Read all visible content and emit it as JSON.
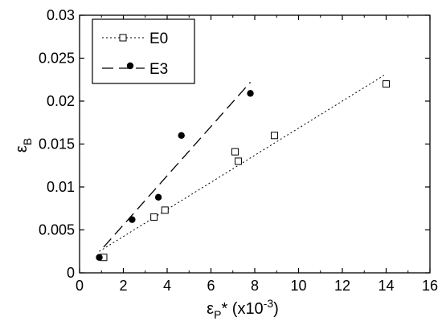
{
  "chart_data": {
    "type": "scatter",
    "title": "",
    "xlabel": {
      "main": "ε",
      "sub": "P",
      "suffix": "* (x10",
      "sup": "-3",
      "close": ")"
    },
    "ylabel": {
      "main": "ε",
      "sub": "B"
    },
    "xlim": [
      0,
      16
    ],
    "ylim": [
      0,
      0.03
    ],
    "xticks": [
      0,
      2,
      4,
      6,
      8,
      10,
      12,
      14,
      16
    ],
    "yticks": [
      0,
      0.005,
      0.01,
      0.015,
      0.02,
      0.025,
      0.03
    ],
    "xtick_labels": [
      "0",
      "2",
      "4",
      "6",
      "8",
      "10",
      "12",
      "14",
      "16"
    ],
    "ytick_labels": [
      "0",
      "0.005",
      "0.01",
      "0.015",
      "0.02",
      "0.025",
      "0.03"
    ],
    "grid": false,
    "legend_position": "top-left",
    "series": [
      {
        "name": "E0",
        "marker": "open-square",
        "line_style": "dotted",
        "color": "#000000",
        "points": [
          [
            1.1,
            0.0018
          ],
          [
            3.4,
            0.0065
          ],
          [
            3.9,
            0.0073
          ],
          [
            7.1,
            0.0141
          ],
          [
            7.25,
            0.013
          ],
          [
            8.9,
            0.016
          ],
          [
            14.0,
            0.022
          ]
        ],
        "fit_line": [
          [
            0.9,
            0.0025
          ],
          [
            13.9,
            0.023
          ]
        ]
      },
      {
        "name": "E3",
        "marker": "filled-circle",
        "line_style": "long-dash",
        "color": "#000000",
        "points": [
          [
            0.9,
            0.0018
          ],
          [
            2.4,
            0.0062
          ],
          [
            3.6,
            0.0088
          ],
          [
            4.65,
            0.016
          ],
          [
            7.8,
            0.0209
          ]
        ],
        "fit_line": [
          [
            1.1,
            0.003
          ],
          [
            7.8,
            0.0222
          ]
        ]
      }
    ]
  }
}
